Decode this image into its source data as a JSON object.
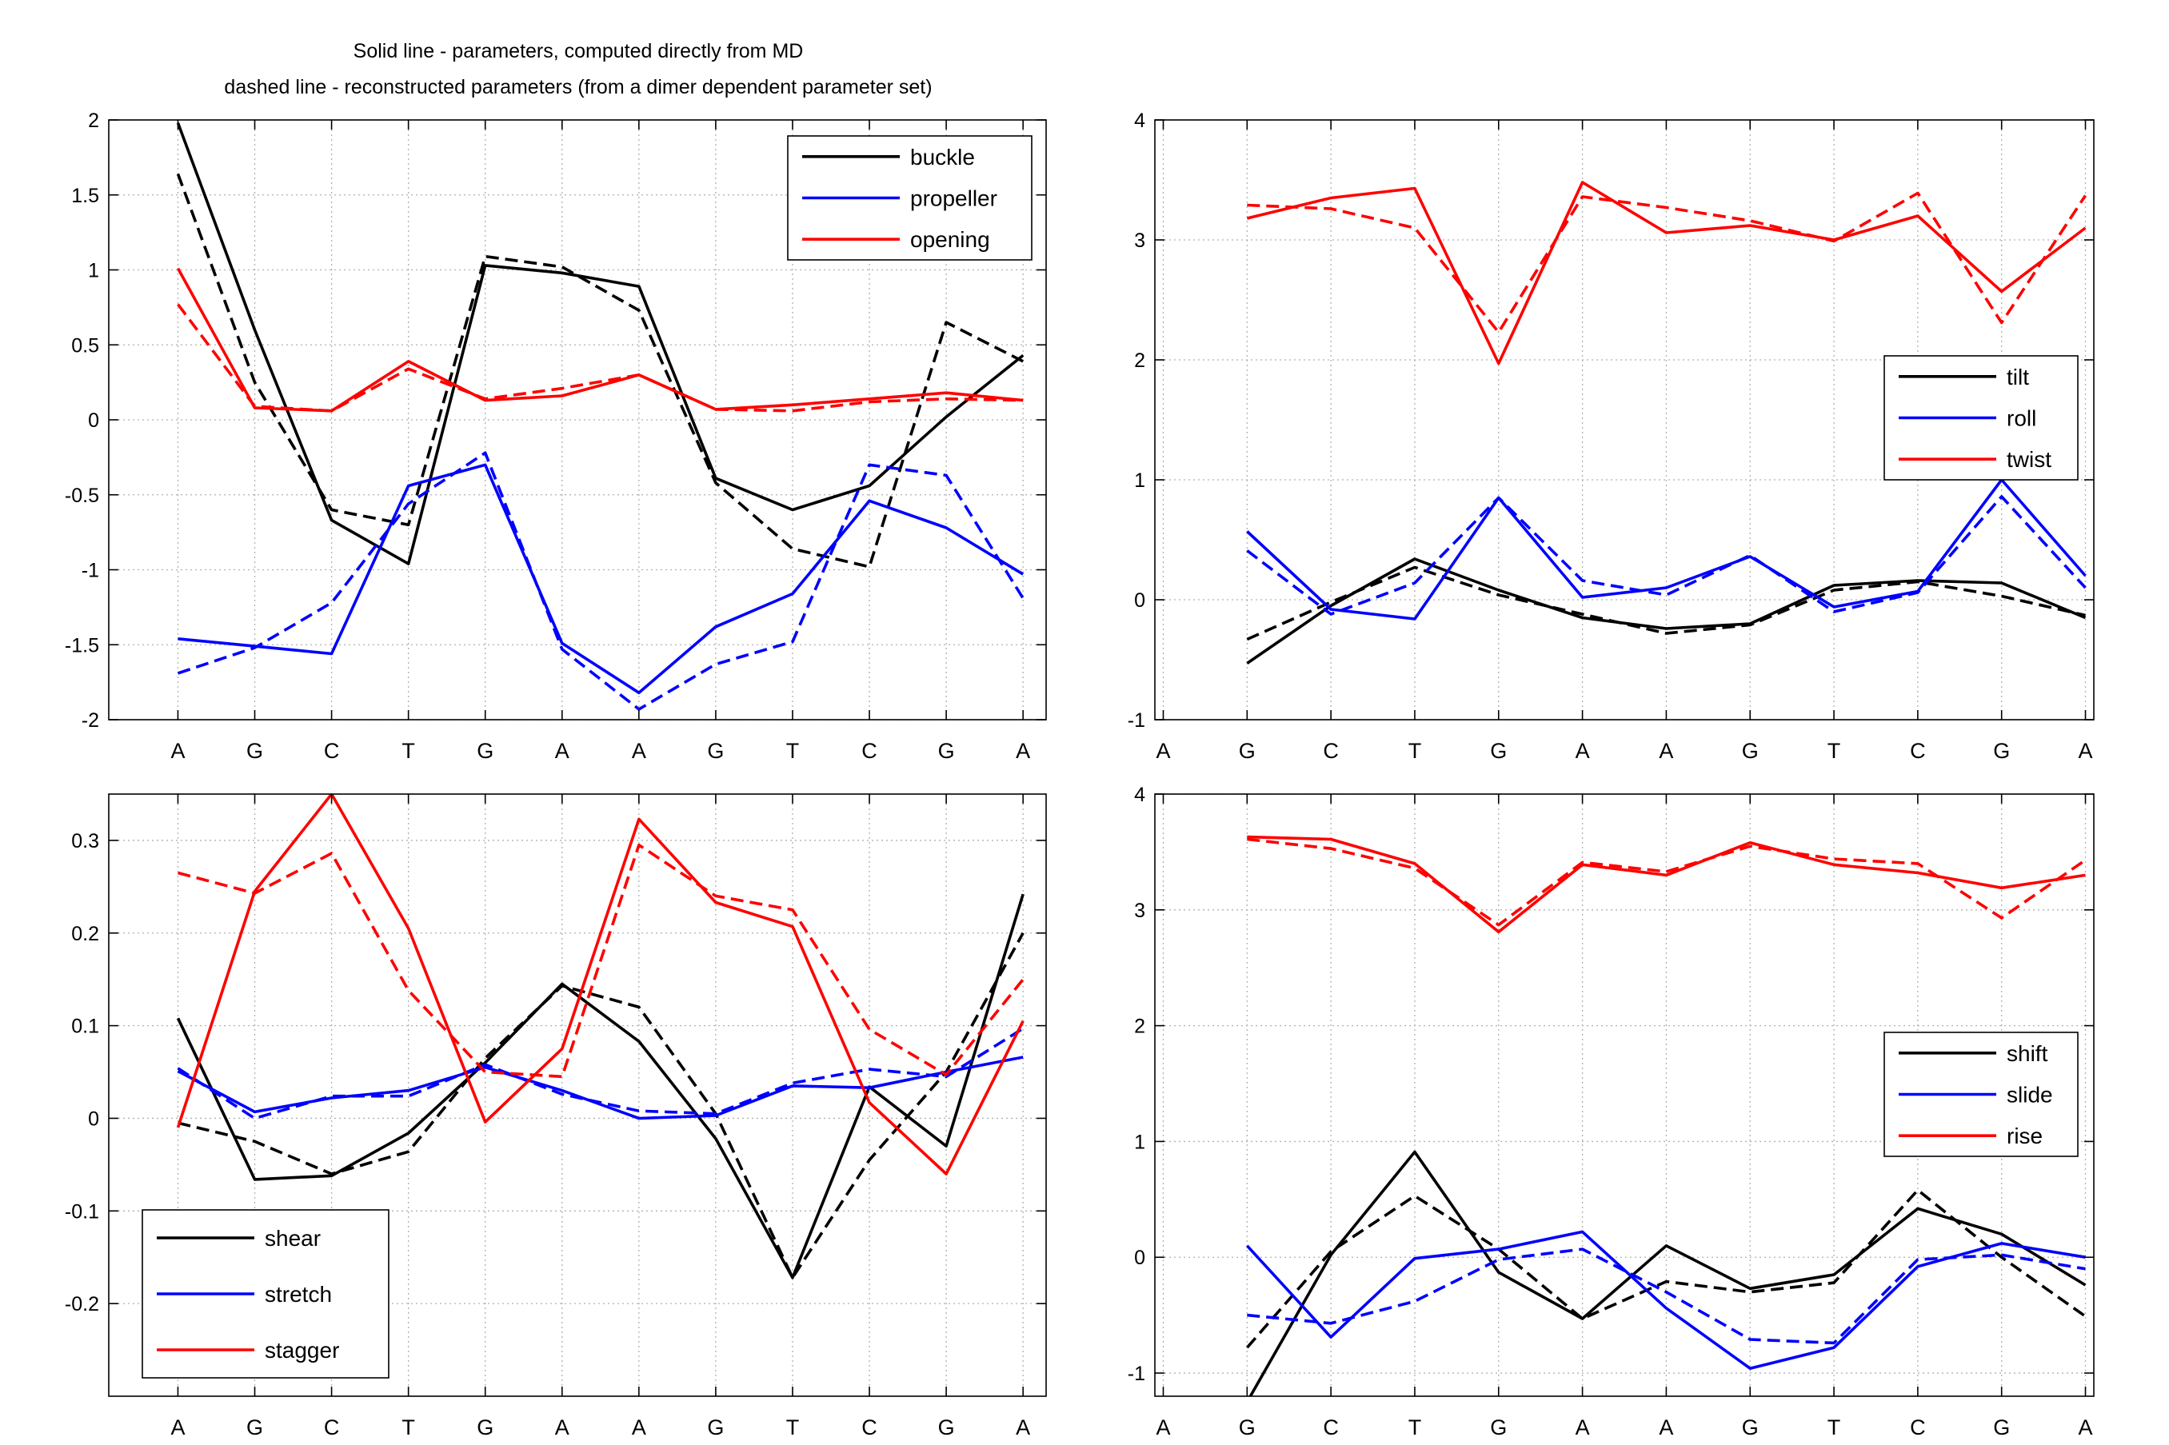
{
  "title_lines": [
    "Solid line - parameters, computed directly from MD",
    "dashed line - reconstructed parameters (from a dimer dependent parameter set)"
  ],
  "colors": {
    "black": "#000000",
    "blue": "#0000ff",
    "red": "#ff0000",
    "grid": "#b0b0b0"
  },
  "line_styles": {
    "solid": "computed directly from MD",
    "dashed": "reconstructed parameters"
  },
  "chart_data": [
    {
      "type": "line",
      "id": "base-pair-angles",
      "categories": [
        "A",
        "G",
        "C",
        "T",
        "G",
        "A",
        "A",
        "G",
        "T",
        "C",
        "G",
        "A"
      ],
      "ylim": [
        -2,
        2
      ],
      "yticks": [
        -2,
        -1.5,
        -1,
        -0.5,
        0,
        0.5,
        1,
        1.5,
        2
      ],
      "ytick_labels": [
        "-2",
        "-1.5",
        "-1",
        "-0.5",
        "0",
        "0.5",
        "1",
        "1.5",
        "2"
      ],
      "x_range": [
        -0.9,
        11.3
      ],
      "xticks": [
        0,
        1,
        2,
        3,
        4,
        5,
        6,
        7,
        8,
        9,
        10,
        11
      ],
      "xtick_labels": [
        "A",
        "G",
        "C",
        "T",
        "G",
        "A",
        "A",
        "G",
        "T",
        "C",
        "G",
        "A"
      ],
      "grid": true,
      "legend_position": "top-right",
      "series": [
        {
          "name": "buckle",
          "color": "#000000",
          "x": [
            0,
            1,
            2,
            3,
            4,
            5,
            6,
            7,
            8,
            9,
            10,
            11
          ],
          "solid": [
            1.98,
            0.6,
            -0.67,
            -0.96,
            1.03,
            0.98,
            0.89,
            -0.39,
            -0.6,
            -0.44,
            0.02,
            0.43
          ],
          "dashed": [
            1.64,
            0.25,
            -0.6,
            -0.7,
            1.09,
            1.02,
            0.73,
            -0.42,
            -0.86,
            -0.98,
            0.65,
            0.39
          ]
        },
        {
          "name": "propeller",
          "color": "#0000ff",
          "x": [
            0,
            1,
            2,
            3,
            4,
            5,
            6,
            7,
            8,
            9,
            10,
            11
          ],
          "solid": [
            -1.46,
            -1.51,
            -1.56,
            -0.44,
            -0.3,
            -1.49,
            -1.82,
            -1.38,
            -1.16,
            -0.54,
            -0.72,
            -1.03
          ],
          "dashed": [
            -1.69,
            -1.52,
            -1.22,
            -0.56,
            -0.22,
            -1.53,
            -1.93,
            -1.63,
            -1.48,
            -0.3,
            -0.37,
            -1.19
          ]
        },
        {
          "name": "opening",
          "color": "#ff0000",
          "x": [
            0,
            1,
            2,
            3,
            4,
            5,
            6,
            7,
            8,
            9,
            10,
            11
          ],
          "solid": [
            1.01,
            0.08,
            0.06,
            0.39,
            0.13,
            0.16,
            0.3,
            0.07,
            0.1,
            0.14,
            0.18,
            0.13
          ],
          "dashed": [
            0.77,
            0.09,
            0.06,
            0.34,
            0.14,
            0.21,
            0.3,
            0.07,
            0.06,
            0.12,
            0.14,
            0.13
          ]
        }
      ]
    },
    {
      "type": "line",
      "id": "step-angles",
      "categories": [
        "A",
        "G",
        "C",
        "T",
        "G",
        "A",
        "A",
        "G",
        "T",
        "C",
        "G",
        "A"
      ],
      "ylim": [
        -1,
        4
      ],
      "yticks": [
        -1,
        0,
        1,
        2,
        3,
        4
      ],
      "ytick_labels": [
        "-1",
        "0",
        "1",
        "2",
        "3",
        "4"
      ],
      "x_range": [
        -0.1,
        11.1
      ],
      "xticks": [
        0,
        1,
        2,
        3,
        4,
        5,
        6,
        7,
        8,
        9,
        10,
        11
      ],
      "xtick_labels": [
        "A",
        "G",
        "C",
        "T",
        "G",
        "A",
        "A",
        "G",
        "T",
        "C",
        "G",
        "A"
      ],
      "grid": true,
      "legend_position": "middle-right",
      "series": [
        {
          "name": "tilt",
          "color": "#000000",
          "x": [
            1,
            2,
            3,
            4,
            5,
            6,
            7,
            8,
            9,
            10,
            11
          ],
          "solid": [
            -0.53,
            -0.05,
            0.34,
            0.08,
            -0.15,
            -0.24,
            -0.2,
            0.12,
            0.16,
            0.14,
            -0.15
          ],
          "dashed": [
            -0.33,
            -0.02,
            0.27,
            0.04,
            -0.12,
            -0.28,
            -0.21,
            0.08,
            0.15,
            0.03,
            -0.13
          ]
        },
        {
          "name": "roll",
          "color": "#0000ff",
          "x": [
            1,
            2,
            3,
            4,
            5,
            6,
            7,
            8,
            9,
            10,
            11
          ],
          "solid": [
            0.57,
            -0.08,
            -0.16,
            0.85,
            0.02,
            0.1,
            0.36,
            -0.06,
            0.07,
            1.0,
            0.2
          ],
          "dashed": [
            0.41,
            -0.12,
            0.14,
            0.85,
            0.16,
            0.04,
            0.37,
            -0.1,
            0.06,
            0.86,
            0.1
          ]
        },
        {
          "name": "twist",
          "color": "#ff0000",
          "x": [
            1,
            2,
            3,
            4,
            5,
            6,
            7,
            8,
            9,
            10,
            11
          ],
          "solid": [
            3.18,
            3.35,
            3.43,
            1.97,
            3.48,
            3.06,
            3.12,
            3.0,
            3.2,
            2.57,
            3.1
          ],
          "dashed": [
            3.29,
            3.26,
            3.1,
            2.23,
            3.36,
            3.27,
            3.16,
            2.99,
            3.39,
            2.31,
            3.37
          ]
        }
      ]
    },
    {
      "type": "line",
      "id": "base-pair-translations",
      "categories": [
        "A",
        "G",
        "C",
        "T",
        "G",
        "A",
        "A",
        "G",
        "T",
        "C",
        "G",
        "A"
      ],
      "ylim": [
        -0.3,
        0.35
      ],
      "yticks": [
        -0.2,
        -0.1,
        0,
        0.1,
        0.2,
        0.3
      ],
      "ytick_labels": [
        "-0.2",
        "-0.1",
        "0",
        "0.1",
        "0.2",
        "0.3"
      ],
      "x_range": [
        -0.9,
        11.3
      ],
      "xticks": [
        0,
        1,
        2,
        3,
        4,
        5,
        6,
        7,
        8,
        9,
        10,
        11
      ],
      "xtick_labels": [
        "A",
        "G",
        "C",
        "T",
        "G",
        "A",
        "A",
        "G",
        "T",
        "C",
        "G",
        "A"
      ],
      "grid": true,
      "legend_position": "bottom-left",
      "series": [
        {
          "name": "shear",
          "color": "#000000",
          "x": [
            0,
            1,
            2,
            3,
            4,
            5,
            6,
            7,
            8,
            9,
            10,
            11
          ],
          "solid": [
            0.108,
            -0.066,
            -0.062,
            -0.016,
            0.06,
            0.145,
            0.083,
            -0.022,
            -0.172,
            0.034,
            -0.03,
            0.242
          ],
          "dashed": [
            -0.005,
            -0.025,
            -0.06,
            -0.036,
            0.065,
            0.143,
            0.12,
            0.005,
            -0.172,
            -0.045,
            0.05,
            0.2
          ]
        },
        {
          "name": "stretch",
          "color": "#0000ff",
          "x": [
            0,
            1,
            2,
            3,
            4,
            5,
            6,
            7,
            8,
            9,
            10,
            11
          ],
          "solid": [
            0.051,
            0.007,
            0.022,
            0.03,
            0.055,
            0.03,
            0.0,
            0.003,
            0.035,
            0.033,
            0.05,
            0.066
          ],
          "dashed": [
            0.054,
            0.0,
            0.024,
            0.024,
            0.058,
            0.026,
            0.008,
            0.005,
            0.038,
            0.053,
            0.045,
            0.097
          ]
        },
        {
          "name": "stagger",
          "color": "#ff0000",
          "x": [
            0,
            1,
            2,
            3,
            4,
            5,
            6,
            7,
            8,
            9,
            10,
            11
          ],
          "solid": [
            -0.01,
            0.245,
            0.35,
            0.205,
            -0.004,
            0.075,
            0.323,
            0.233,
            0.207,
            0.017,
            -0.06,
            0.105
          ],
          "dashed": [
            0.265,
            0.243,
            0.286,
            0.138,
            0.05,
            0.045,
            0.295,
            0.24,
            0.225,
            0.096,
            0.047,
            0.15
          ]
        }
      ]
    },
    {
      "type": "line",
      "id": "step-translations",
      "categories": [
        "A",
        "G",
        "C",
        "T",
        "G",
        "A",
        "A",
        "G",
        "T",
        "C",
        "G",
        "A"
      ],
      "ylim": [
        -1.2,
        4
      ],
      "yticks": [
        -1,
        0,
        1,
        2,
        3,
        4
      ],
      "ytick_labels": [
        "-1",
        "0",
        "1",
        "2",
        "3",
        "4"
      ],
      "x_range": [
        -0.1,
        11.1
      ],
      "xticks": [
        0,
        1,
        2,
        3,
        4,
        5,
        6,
        7,
        8,
        9,
        10,
        11
      ],
      "xtick_labels": [
        "A",
        "G",
        "C",
        "T",
        "G",
        "A",
        "A",
        "G",
        "T",
        "C",
        "G",
        "A"
      ],
      "grid": true,
      "legend_position": "middle-right",
      "series": [
        {
          "name": "shift",
          "color": "#000000",
          "x": [
            1,
            2,
            3,
            4,
            5,
            6,
            7,
            8,
            9,
            10,
            11
          ],
          "solid": [
            -1.25,
            0.02,
            0.91,
            -0.13,
            -0.53,
            0.1,
            -0.27,
            -0.15,
            0.42,
            0.2,
            -0.24
          ],
          "dashed": [
            -0.78,
            0.05,
            0.53,
            0.07,
            -0.53,
            -0.21,
            -0.3,
            -0.22,
            0.58,
            0.0,
            -0.51
          ]
        },
        {
          "name": "slide",
          "color": "#0000ff",
          "x": [
            1,
            2,
            3,
            4,
            5,
            6,
            7,
            8,
            9,
            10,
            11
          ],
          "solid": [
            0.1,
            -0.69,
            -0.01,
            0.07,
            0.22,
            -0.44,
            -0.96,
            -0.78,
            -0.08,
            0.12,
            0.0
          ],
          "dashed": [
            -0.5,
            -0.57,
            -0.38,
            -0.02,
            0.07,
            -0.3,
            -0.71,
            -0.74,
            -0.02,
            0.02,
            -0.1
          ]
        },
        {
          "name": "rise",
          "color": "#ff0000",
          "x": [
            1,
            2,
            3,
            4,
            5,
            6,
            7,
            8,
            9,
            10,
            11
          ],
          "solid": [
            3.63,
            3.61,
            3.4,
            2.81,
            3.39,
            3.3,
            3.58,
            3.39,
            3.32,
            3.19,
            3.3
          ],
          "dashed": [
            3.61,
            3.53,
            3.36,
            2.87,
            3.41,
            3.33,
            3.55,
            3.44,
            3.4,
            2.93,
            3.43
          ]
        }
      ]
    }
  ]
}
